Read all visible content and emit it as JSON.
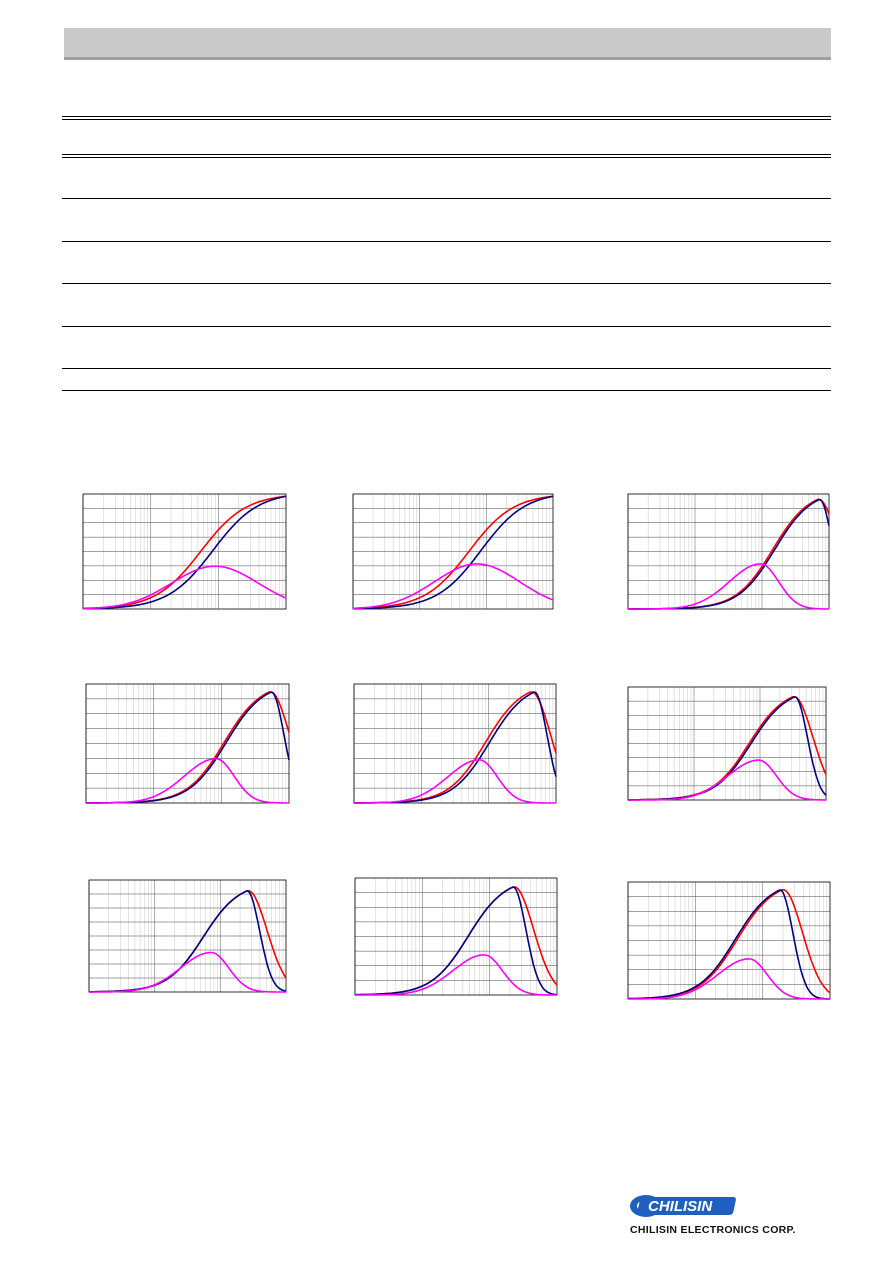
{
  "brand": {
    "logo_word": "CHILISIN",
    "company": "CHILISIN ELECTRONICS CORP."
  },
  "colors": {
    "header_bar": "#c9c9c9",
    "series_red": "#ff0000",
    "series_navy": "#000080",
    "series_magenta": "#ff00ff",
    "logo_blue": "#1f5fbf"
  },
  "chart_data": [
    {
      "type": "line",
      "xscale": "log",
      "grid": true,
      "series": [
        {
          "color": "red",
          "peak": 1.0,
          "rise": 0.62
        },
        {
          "color": "navy",
          "peak": 1.0,
          "rise": 0.72
        },
        {
          "color": "magenta",
          "peak": 0.38,
          "at": 0.65
        }
      ]
    },
    {
      "type": "line",
      "xscale": "log",
      "grid": true,
      "series": [
        {
          "color": "red",
          "peak": 1.0,
          "rise": 0.62
        },
        {
          "color": "navy",
          "peak": 1.0,
          "rise": 0.72
        },
        {
          "color": "magenta",
          "peak": 0.4,
          "at": 0.62
        }
      ]
    },
    {
      "type": "line",
      "xscale": "log",
      "grid": true,
      "series": [
        {
          "color": "red",
          "peak": 0.97,
          "at": 0.94
        },
        {
          "color": "navy",
          "peak": 0.97,
          "at": 0.95
        },
        {
          "color": "magenta",
          "peak": 0.4,
          "at": 0.66
        }
      ]
    },
    {
      "type": "line",
      "xscale": "log",
      "grid": true,
      "series": [
        {
          "color": "red",
          "peak": 0.95,
          "at": 0.9
        },
        {
          "color": "navy",
          "peak": 0.95,
          "at": 0.91
        },
        {
          "color": "magenta",
          "peak": 0.38,
          "at": 0.64
        }
      ]
    },
    {
      "type": "line",
      "xscale": "log",
      "grid": true,
      "series": [
        {
          "color": "red",
          "peak": 0.95,
          "at": 0.87
        },
        {
          "color": "navy",
          "peak": 0.95,
          "at": 0.89
        },
        {
          "color": "magenta",
          "peak": 0.37,
          "at": 0.62
        }
      ]
    },
    {
      "type": "line",
      "xscale": "log",
      "grid": true,
      "series": [
        {
          "color": "red",
          "peak": 0.93,
          "at": 0.83
        },
        {
          "color": "navy",
          "peak": 0.93,
          "at": 0.84
        },
        {
          "color": "magenta",
          "peak": 0.36,
          "at": 0.66
        }
      ]
    },
    {
      "type": "line",
      "xscale": "log",
      "grid": true,
      "series": [
        {
          "color": "red",
          "peak": 0.92,
          "at": 0.8
        },
        {
          "color": "navy",
          "peak": 0.92,
          "at": 0.8
        },
        {
          "color": "magenta",
          "peak": 0.36,
          "at": 0.62
        }
      ]
    },
    {
      "type": "line",
      "xscale": "log",
      "grid": true,
      "series": [
        {
          "color": "red",
          "peak": 0.94,
          "at": 0.78
        },
        {
          "color": "navy",
          "peak": 0.94,
          "at": 0.78
        },
        {
          "color": "magenta",
          "peak": 0.35,
          "at": 0.64
        }
      ]
    },
    {
      "type": "line",
      "xscale": "log",
      "grid": true,
      "series": [
        {
          "color": "red",
          "peak": 0.95,
          "at": 0.76
        },
        {
          "color": "navy",
          "peak": 0.95,
          "at": 0.75
        },
        {
          "color": "magenta",
          "peak": 0.35,
          "at": 0.6
        }
      ]
    }
  ]
}
